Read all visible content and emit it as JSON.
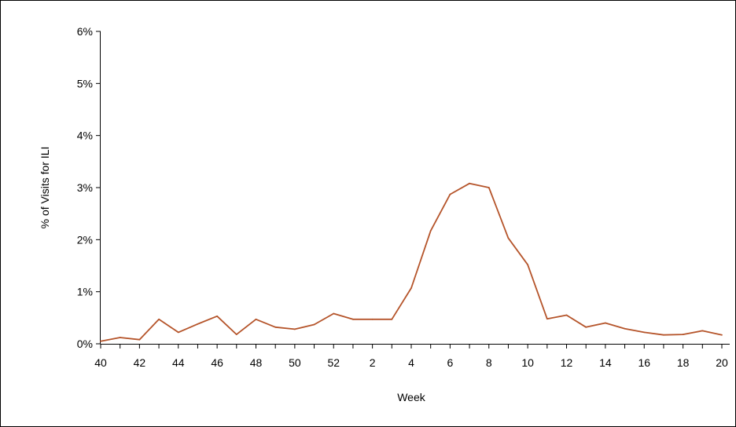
{
  "chart_data": {
    "type": "line",
    "title": "",
    "xlabel": "Week",
    "ylabel": "% of Visits for ILI",
    "x": [
      40,
      41,
      42,
      43,
      44,
      45,
      46,
      47,
      48,
      49,
      50,
      51,
      52,
      1,
      2,
      3,
      4,
      5,
      6,
      7,
      8,
      9,
      10,
      11,
      12,
      13,
      14,
      15,
      16,
      17,
      18,
      19,
      20
    ],
    "x_tick_labels": [
      "40",
      "42",
      "44",
      "46",
      "48",
      "50",
      "52",
      "2",
      "4",
      "6",
      "8",
      "10",
      "12",
      "14",
      "16",
      "18",
      "20"
    ],
    "y_tick_labels": [
      "0%",
      "1%",
      "2%",
      "3%",
      "4%",
      "5%",
      "6%"
    ],
    "ylim": [
      0,
      6
    ],
    "grid": false,
    "series": [
      {
        "color": "#b5542a",
        "values": [
          0.05,
          0.12,
          0.08,
          0.47,
          0.22,
          0.38,
          0.53,
          0.18,
          0.47,
          0.32,
          0.28,
          0.37,
          0.58,
          0.47,
          0.47,
          0.47,
          1.07,
          2.17,
          2.87,
          3.08,
          3.0,
          2.03,
          1.52,
          0.48,
          0.55,
          0.32,
          0.4,
          0.29,
          0.22,
          0.17,
          0.18,
          0.25,
          0.17
        ]
      }
    ]
  }
}
